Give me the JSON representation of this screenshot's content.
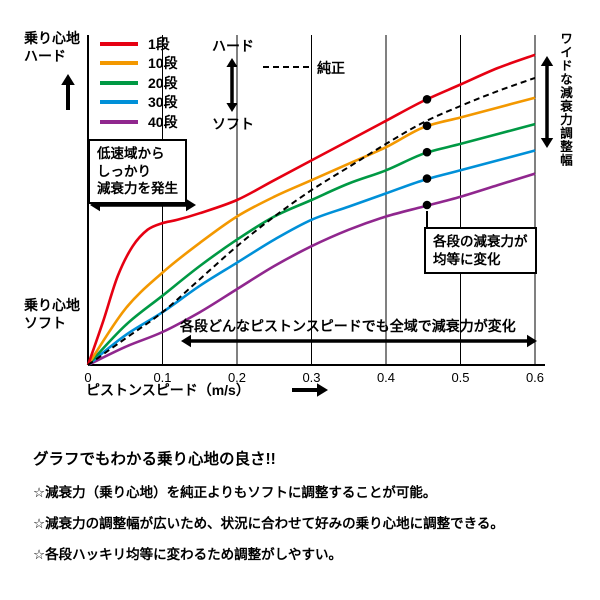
{
  "chart_data": {
    "type": "line",
    "x_label": "ピストンスピード（m/s）",
    "x_ticks": [
      "0",
      "0.1",
      "0.2",
      "0.3",
      "0.4",
      "0.5",
      "0.6"
    ],
    "xlim": [
      0,
      0.6
    ],
    "ylim": [
      0,
      1
    ],
    "grid": "vertical-only",
    "y_axis_top_label": "乗り心地\nハード",
    "y_axis_bottom_label": "乗り心地\nソフト",
    "legend": {
      "position": "top-left-inside",
      "hard_label": "ハード",
      "soft_label": "ソフト",
      "stock_label": "純正"
    },
    "series": [
      {
        "name": "1段",
        "color": "#e60012",
        "style": "solid",
        "x": [
          0,
          0.02,
          0.04,
          0.06,
          0.08,
          0.1,
          0.12,
          0.15,
          0.2,
          0.25,
          0.3,
          0.35,
          0.4,
          0.45,
          0.5,
          0.55,
          0.6
        ],
        "y": [
          0,
          0.13,
          0.27,
          0.36,
          0.41,
          0.43,
          0.44,
          0.46,
          0.5,
          0.56,
          0.62,
          0.68,
          0.74,
          0.8,
          0.85,
          0.9,
          0.94
        ]
      },
      {
        "name": "10段",
        "color": "#f39800",
        "style": "solid",
        "x": [
          0,
          0.05,
          0.1,
          0.15,
          0.2,
          0.25,
          0.3,
          0.35,
          0.4,
          0.45,
          0.5,
          0.55,
          0.6
        ],
        "y": [
          0,
          0.17,
          0.28,
          0.37,
          0.45,
          0.51,
          0.56,
          0.61,
          0.66,
          0.72,
          0.75,
          0.78,
          0.81
        ]
      },
      {
        "name": "20段",
        "color": "#009944",
        "style": "solid",
        "x": [
          0,
          0.05,
          0.1,
          0.15,
          0.2,
          0.25,
          0.3,
          0.35,
          0.4,
          0.45,
          0.5,
          0.55,
          0.6
        ],
        "y": [
          0,
          0.12,
          0.21,
          0.3,
          0.38,
          0.45,
          0.5,
          0.55,
          0.59,
          0.64,
          0.67,
          0.7,
          0.73
        ]
      },
      {
        "name": "30段",
        "color": "#0090d8",
        "style": "solid",
        "x": [
          0,
          0.05,
          0.1,
          0.15,
          0.2,
          0.25,
          0.3,
          0.35,
          0.4,
          0.45,
          0.5,
          0.55,
          0.6
        ],
        "y": [
          0,
          0.09,
          0.16,
          0.24,
          0.31,
          0.38,
          0.44,
          0.48,
          0.52,
          0.56,
          0.59,
          0.62,
          0.65
        ]
      },
      {
        "name": "40段",
        "color": "#90278e",
        "style": "solid",
        "x": [
          0,
          0.05,
          0.1,
          0.15,
          0.2,
          0.25,
          0.3,
          0.35,
          0.4,
          0.45,
          0.5,
          0.55,
          0.6
        ],
        "y": [
          0,
          0.055,
          0.1,
          0.16,
          0.23,
          0.3,
          0.36,
          0.41,
          0.45,
          0.48,
          0.51,
          0.545,
          0.58
        ]
      },
      {
        "name": "純正",
        "color": "#000000",
        "style": "dashed",
        "x": [
          0,
          0.05,
          0.1,
          0.15,
          0.2,
          0.25,
          0.3,
          0.35,
          0.4,
          0.45,
          0.5,
          0.55,
          0.6
        ],
        "y": [
          0,
          0.08,
          0.16,
          0.26,
          0.36,
          0.45,
          0.53,
          0.6,
          0.67,
          0.735,
          0.785,
          0.83,
          0.87
        ]
      }
    ],
    "markers": {
      "x": 0.455,
      "y_values": [
        0.805,
        0.725,
        0.645,
        0.565,
        0.485
      ],
      "note": "equal spacing dots on each adjustment step curve"
    }
  },
  "annotations": {
    "low_speed_box": "低速域から\nしっかり\n減衰力を発生",
    "wide_adjust_range": "ワイドな減衰力調整幅",
    "equal_steps_box": "各段の減衰力が\n均等に変化",
    "full_range_note": "各段どんなピストンスピードでも全域で減衰力が変化"
  },
  "summary": {
    "heading": "グラフでもわかる乗り心地の良さ!!",
    "points": [
      "☆減衰力（乗り心地）を純正よりもソフトに調整することが可能。",
      "☆減衰力の調整幅が広いため、状況に合わせて好みの乗り心地に調整できる。",
      "☆各段ハッキリ均等に変わるため調整がしやすい。"
    ]
  }
}
